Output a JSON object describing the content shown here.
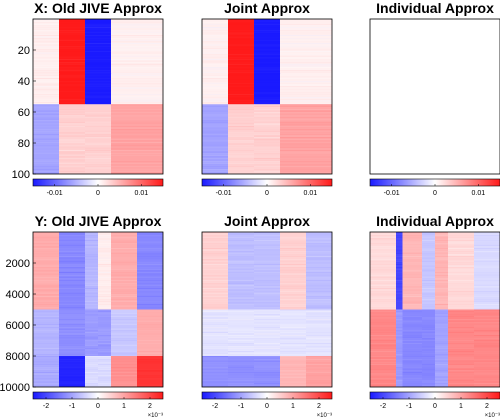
{
  "colormap": {
    "negative": "#1a1aff",
    "zero": "#ffffff",
    "positive": "#ff1a1a"
  },
  "chart_data": [
    {
      "type": "heatmap",
      "id": "x-old-jive",
      "title": "X: Old JIVE Approx",
      "ylim": [
        0,
        100
      ],
      "yticks": [
        "20",
        "40",
        "60",
        "80",
        "100"
      ],
      "ytick_values": [
        20,
        40,
        60,
        80,
        100
      ],
      "clim": [
        -0.015,
        0.015
      ],
      "colorbar": {
        "ticks": [
          "-0.01",
          "0",
          "0.01"
        ],
        "tick_values": [
          -0.01,
          0,
          0.01
        ],
        "exponent": ""
      },
      "column_bounds": [
        0,
        0.2,
        0.4,
        0.6,
        1.0
      ],
      "row_bounds": [
        0,
        0.35,
        0.55,
        0.68,
        1.0
      ],
      "values": [
        [
          0.001,
          0.015,
          -0.015,
          0.001
        ],
        [
          0.001,
          0.015,
          -0.015,
          0.001
        ],
        [
          -0.006,
          0.003,
          0.003,
          0.006
        ],
        [
          -0.006,
          0.003,
          0.003,
          0.006
        ]
      ]
    },
    {
      "type": "heatmap",
      "id": "x-joint",
      "title": "Joint Approx",
      "ylim": [
        0,
        100
      ],
      "yticks": [],
      "ytick_values": [],
      "clim": [
        -0.015,
        0.015
      ],
      "colorbar": {
        "ticks": [
          "-0.01",
          "0",
          "0.01"
        ],
        "tick_values": [
          -0.01,
          0,
          0.01
        ],
        "exponent": ""
      },
      "column_bounds": [
        0,
        0.2,
        0.4,
        0.6,
        1.0
      ],
      "row_bounds": [
        0,
        0.35,
        0.55,
        0.68,
        1.0
      ],
      "values": [
        [
          0.001,
          0.015,
          -0.015,
          0.001
        ],
        [
          0.001,
          0.015,
          -0.015,
          0.001
        ],
        [
          -0.006,
          0.003,
          0.003,
          0.006
        ],
        [
          -0.006,
          0.003,
          0.003,
          0.006
        ]
      ]
    },
    {
      "type": "heatmap",
      "id": "x-individual",
      "title": "Individual Approx",
      "ylim": [
        0,
        100
      ],
      "yticks": [],
      "ytick_values": [],
      "clim": [
        -0.015,
        0.015
      ],
      "colorbar": {
        "ticks": [
          "-0.01",
          "0",
          "0.01"
        ],
        "tick_values": [
          -0.01,
          0,
          0.01
        ],
        "exponent": ""
      },
      "column_bounds": [
        0,
        1.0
      ],
      "row_bounds": [
        0,
        1.0
      ],
      "values": [
        [
          0
        ]
      ]
    },
    {
      "type": "heatmap",
      "id": "y-old-jive",
      "title": "Y: Old JIVE Approx",
      "ylim": [
        0,
        10000
      ],
      "yticks": [
        "2000",
        "4000",
        "6000",
        "8000",
        "10000"
      ],
      "ytick_values": [
        2000,
        4000,
        6000,
        8000,
        10000
      ],
      "clim": [
        -0.0025,
        0.0025
      ],
      "colorbar": {
        "ticks": [
          "-2",
          "-1",
          "0",
          "1",
          "2"
        ],
        "tick_values": [
          -0.002,
          -0.001,
          0,
          0.001,
          0.002
        ],
        "exponent": "×10⁻³"
      },
      "column_bounds": [
        0,
        0.2,
        0.4,
        0.5,
        0.6,
        0.8,
        1.0
      ],
      "row_bounds": [
        0,
        0.5,
        0.8,
        1.0
      ],
      "values": [
        [
          0.0009,
          -0.0013,
          -0.0008,
          0.0002,
          0.0009,
          -0.0013
        ],
        [
          -0.0008,
          -0.0012,
          -0.0011,
          -0.0011,
          -0.0006,
          0.0009
        ],
        [
          -0.0009,
          -0.0024,
          -0.0004,
          -0.0004,
          0.0012,
          0.0022
        ]
      ]
    },
    {
      "type": "heatmap",
      "id": "y-joint",
      "title": "Joint Approx",
      "ylim": [
        0,
        10000
      ],
      "yticks": [],
      "ytick_values": [],
      "clim": [
        -0.0025,
        0.0025
      ],
      "colorbar": {
        "ticks": [
          "-2",
          "-1",
          "0",
          "1",
          "2"
        ],
        "tick_values": [
          -0.002,
          -0.001,
          0,
          0.001,
          0.002
        ],
        "exponent": "×10⁻³"
      },
      "column_bounds": [
        0,
        0.2,
        0.4,
        0.6,
        0.8,
        1.0
      ],
      "row_bounds": [
        0,
        0.5,
        0.8,
        1.0
      ],
      "values": [
        [
          0.0005,
          -0.0007,
          -0.0007,
          0.0005,
          -0.0007
        ],
        [
          -0.0003,
          -0.0003,
          -0.0003,
          -0.0003,
          -0.0003
        ],
        [
          -0.0012,
          -0.0012,
          -0.0012,
          0.0008,
          0.001
        ]
      ]
    },
    {
      "type": "heatmap",
      "id": "y-individual",
      "title": "Individual Approx",
      "ylim": [
        0,
        10000
      ],
      "yticks": [],
      "ytick_values": [],
      "clim": [
        -0.0025,
        0.0025
      ],
      "colorbar": {
        "ticks": [
          "-2",
          "-1",
          "0",
          "1",
          "2"
        ],
        "tick_values": [
          -0.002,
          -0.001,
          0,
          0.001,
          0.002
        ],
        "exponent": "×10⁻³"
      },
      "column_bounds": [
        0,
        0.2,
        0.25,
        0.4,
        0.5,
        0.6,
        0.8,
        1.0
      ],
      "row_bounds": [
        0,
        0.5,
        1.0
      ],
      "values": [
        [
          0.0004,
          -0.002,
          0.0008,
          -0.0006,
          0.0008,
          0.0004,
          -0.0004
        ],
        [
          0.0013,
          -0.0011,
          -0.0013,
          -0.0013,
          -0.001,
          0.0013,
          0.0013
        ]
      ]
    }
  ]
}
